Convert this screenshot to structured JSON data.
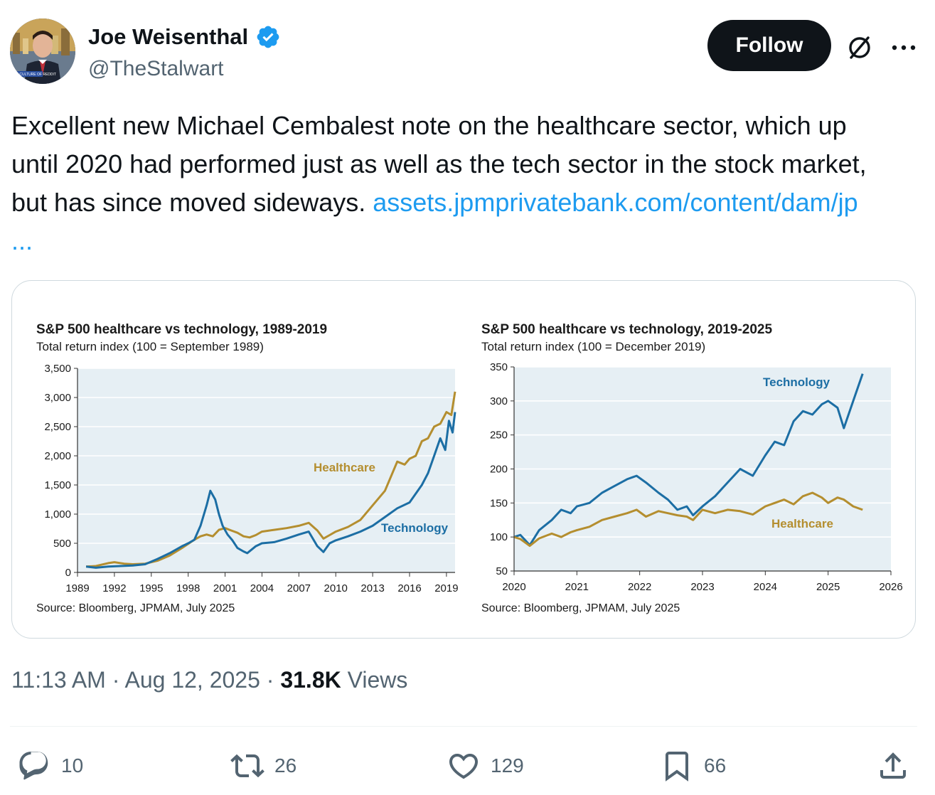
{
  "author": {
    "display_name": "Joe Weisenthal",
    "handle": "@TheStalwart",
    "verified": true,
    "avatar_caption": "THE CULTURE OF REDDIT"
  },
  "header": {
    "follow_label": "Follow",
    "grok_icon": "grok-icon",
    "more_icon": "more-icon"
  },
  "tweet": {
    "text_line_1": "Excellent new Michael Cembalest note on the healthcare sector, which up",
    "text_line_2": "until 2020 had performed just as well as the tech sector in the stock market,",
    "text_line_3": "but has since moved sideways. ",
    "link": "assets.jpmprivatebank.com/content/dam/jp",
    "link_ellipsis": "..."
  },
  "chart_data": [
    {
      "type": "line",
      "title": "S&P 500 healthcare vs technology, 1989-2019",
      "subtitle": "Total return index (100 = September 1989)",
      "source": "Source: Bloomberg, JPMAM,  July 2025",
      "xlabel": "",
      "ylabel": "",
      "x_ticks": [
        "1989",
        "1992",
        "1995",
        "1998",
        "2001",
        "2004",
        "2007",
        "2010",
        "2013",
        "2016",
        "2019"
      ],
      "y_ticks": [
        "0",
        "500",
        "1,000",
        "1,500",
        "2,000",
        "2,500",
        "3,000",
        "3,500"
      ],
      "xlim": [
        1989,
        2019.7
      ],
      "ylim": [
        0,
        3500
      ],
      "grid": true,
      "plot_bg": "#e6eff4",
      "series": [
        {
          "name": "Healthcare",
          "color": "#b48e2f",
          "x": [
            1989.7,
            1990.5,
            1991.5,
            1992.0,
            1992.8,
            1993.5,
            1994.5,
            1995.5,
            1996.5,
            1997.5,
            1998.5,
            1999.0,
            1999.5,
            2000.0,
            2000.5,
            2001.0,
            2001.5,
            2002.0,
            2002.5,
            2003.0,
            2003.5,
            2004.0,
            2005.0,
            2006.0,
            2007.0,
            2007.8,
            2008.5,
            2009.0,
            2009.5,
            2010.0,
            2011.0,
            2012.0,
            2013.0,
            2014.0,
            2015.0,
            2015.6,
            2016.0,
            2016.5,
            2017.0,
            2017.5,
            2018.0,
            2018.5,
            2019.0,
            2019.4,
            2019.7
          ],
          "values": [
            100,
            110,
            160,
            175,
            150,
            140,
            150,
            200,
            290,
            420,
            560,
            620,
            650,
            620,
            730,
            760,
            720,
            680,
            620,
            600,
            640,
            700,
            730,
            760,
            800,
            850,
            720,
            580,
            640,
            700,
            780,
            900,
            1150,
            1400,
            1900,
            1850,
            1950,
            2000,
            2250,
            2300,
            2500,
            2550,
            2750,
            2700,
            3100
          ]
        },
        {
          "name": "Technology",
          "color": "#1c6ea4",
          "x": [
            1989.7,
            1990.5,
            1991.5,
            1992.5,
            1993.5,
            1994.5,
            1995.5,
            1996.5,
            1997.5,
            1998.0,
            1998.5,
            1999.0,
            1999.5,
            1999.8,
            2000.2,
            2000.5,
            2000.8,
            2001.2,
            2001.6,
            2002.0,
            2002.5,
            2002.8,
            2003.5,
            2004.0,
            2005.0,
            2006.0,
            2007.0,
            2007.8,
            2008.5,
            2009.0,
            2009.5,
            2010.0,
            2011.0,
            2012.0,
            2013.0,
            2014.0,
            2015.0,
            2016.0,
            2017.0,
            2017.5,
            2018.0,
            2018.5,
            2018.9,
            2019.2,
            2019.5,
            2019.7
          ],
          "values": [
            100,
            80,
            100,
            110,
            120,
            140,
            230,
            330,
            450,
            500,
            560,
            800,
            1150,
            1400,
            1250,
            1000,
            800,
            650,
            550,
            420,
            360,
            330,
            450,
            500,
            520,
            580,
            650,
            700,
            450,
            350,
            500,
            550,
            620,
            700,
            800,
            950,
            1100,
            1200,
            1500,
            1700,
            2000,
            2300,
            2100,
            2600,
            2400,
            2750
          ]
        }
      ]
    },
    {
      "type": "line",
      "title": "S&P 500 healthcare vs technology, 2019-2025",
      "subtitle": "Total return index (100 = December 2019)",
      "source": "Source: Bloomberg, JPMAM,  July 2025",
      "xlabel": "",
      "ylabel": "",
      "x_ticks": [
        "2020",
        "2021",
        "2022",
        "2023",
        "2024",
        "2025",
        "2026"
      ],
      "y_ticks": [
        "50",
        "100",
        "150",
        "200",
        "250",
        "300",
        "350"
      ],
      "xlim": [
        2020,
        2026
      ],
      "ylim": [
        50,
        350
      ],
      "grid": true,
      "plot_bg": "#e6eff4",
      "series": [
        {
          "name": "Technology",
          "color": "#1c6ea4",
          "x": [
            2020.0,
            2020.1,
            2020.25,
            2020.4,
            2020.6,
            2020.75,
            2020.9,
            2021.0,
            2021.2,
            2021.4,
            2021.6,
            2021.8,
            2021.95,
            2022.1,
            2022.3,
            2022.45,
            2022.6,
            2022.75,
            2022.85,
            2023.0,
            2023.2,
            2023.4,
            2023.6,
            2023.8,
            2024.0,
            2024.15,
            2024.3,
            2024.45,
            2024.6,
            2024.75,
            2024.9,
            2025.0,
            2025.15,
            2025.25,
            2025.4,
            2025.55
          ],
          "values": [
            100,
            103,
            88,
            110,
            125,
            140,
            135,
            145,
            150,
            165,
            175,
            185,
            190,
            180,
            165,
            155,
            140,
            145,
            132,
            145,
            160,
            180,
            200,
            190,
            220,
            240,
            235,
            270,
            285,
            280,
            295,
            300,
            290,
            260,
            300,
            340
          ]
        },
        {
          "name": "Healthcare",
          "color": "#b48e2f",
          "x": [
            2020.0,
            2020.1,
            2020.25,
            2020.4,
            2020.6,
            2020.75,
            2020.9,
            2021.0,
            2021.2,
            2021.4,
            2021.6,
            2021.8,
            2021.95,
            2022.1,
            2022.3,
            2022.45,
            2022.6,
            2022.75,
            2022.85,
            2023.0,
            2023.2,
            2023.4,
            2023.6,
            2023.8,
            2024.0,
            2024.15,
            2024.3,
            2024.45,
            2024.6,
            2024.75,
            2024.9,
            2025.0,
            2025.15,
            2025.25,
            2025.4,
            2025.55
          ],
          "values": [
            100,
            97,
            87,
            98,
            105,
            100,
            107,
            110,
            115,
            125,
            130,
            135,
            140,
            130,
            138,
            135,
            132,
            130,
            125,
            140,
            135,
            140,
            138,
            133,
            145,
            150,
            155,
            148,
            160,
            165,
            158,
            150,
            158,
            155,
            145,
            140
          ]
        }
      ]
    }
  ],
  "timestamp": {
    "time": "11:13 AM",
    "sep1": " · ",
    "date": "Aug 12, 2025",
    "sep2": " · ",
    "views_count": "31.8K",
    "views_label": " Views"
  },
  "actions": {
    "reply_count": "10",
    "retweet_count": "26",
    "like_count": "129",
    "bookmark_count": "66"
  }
}
